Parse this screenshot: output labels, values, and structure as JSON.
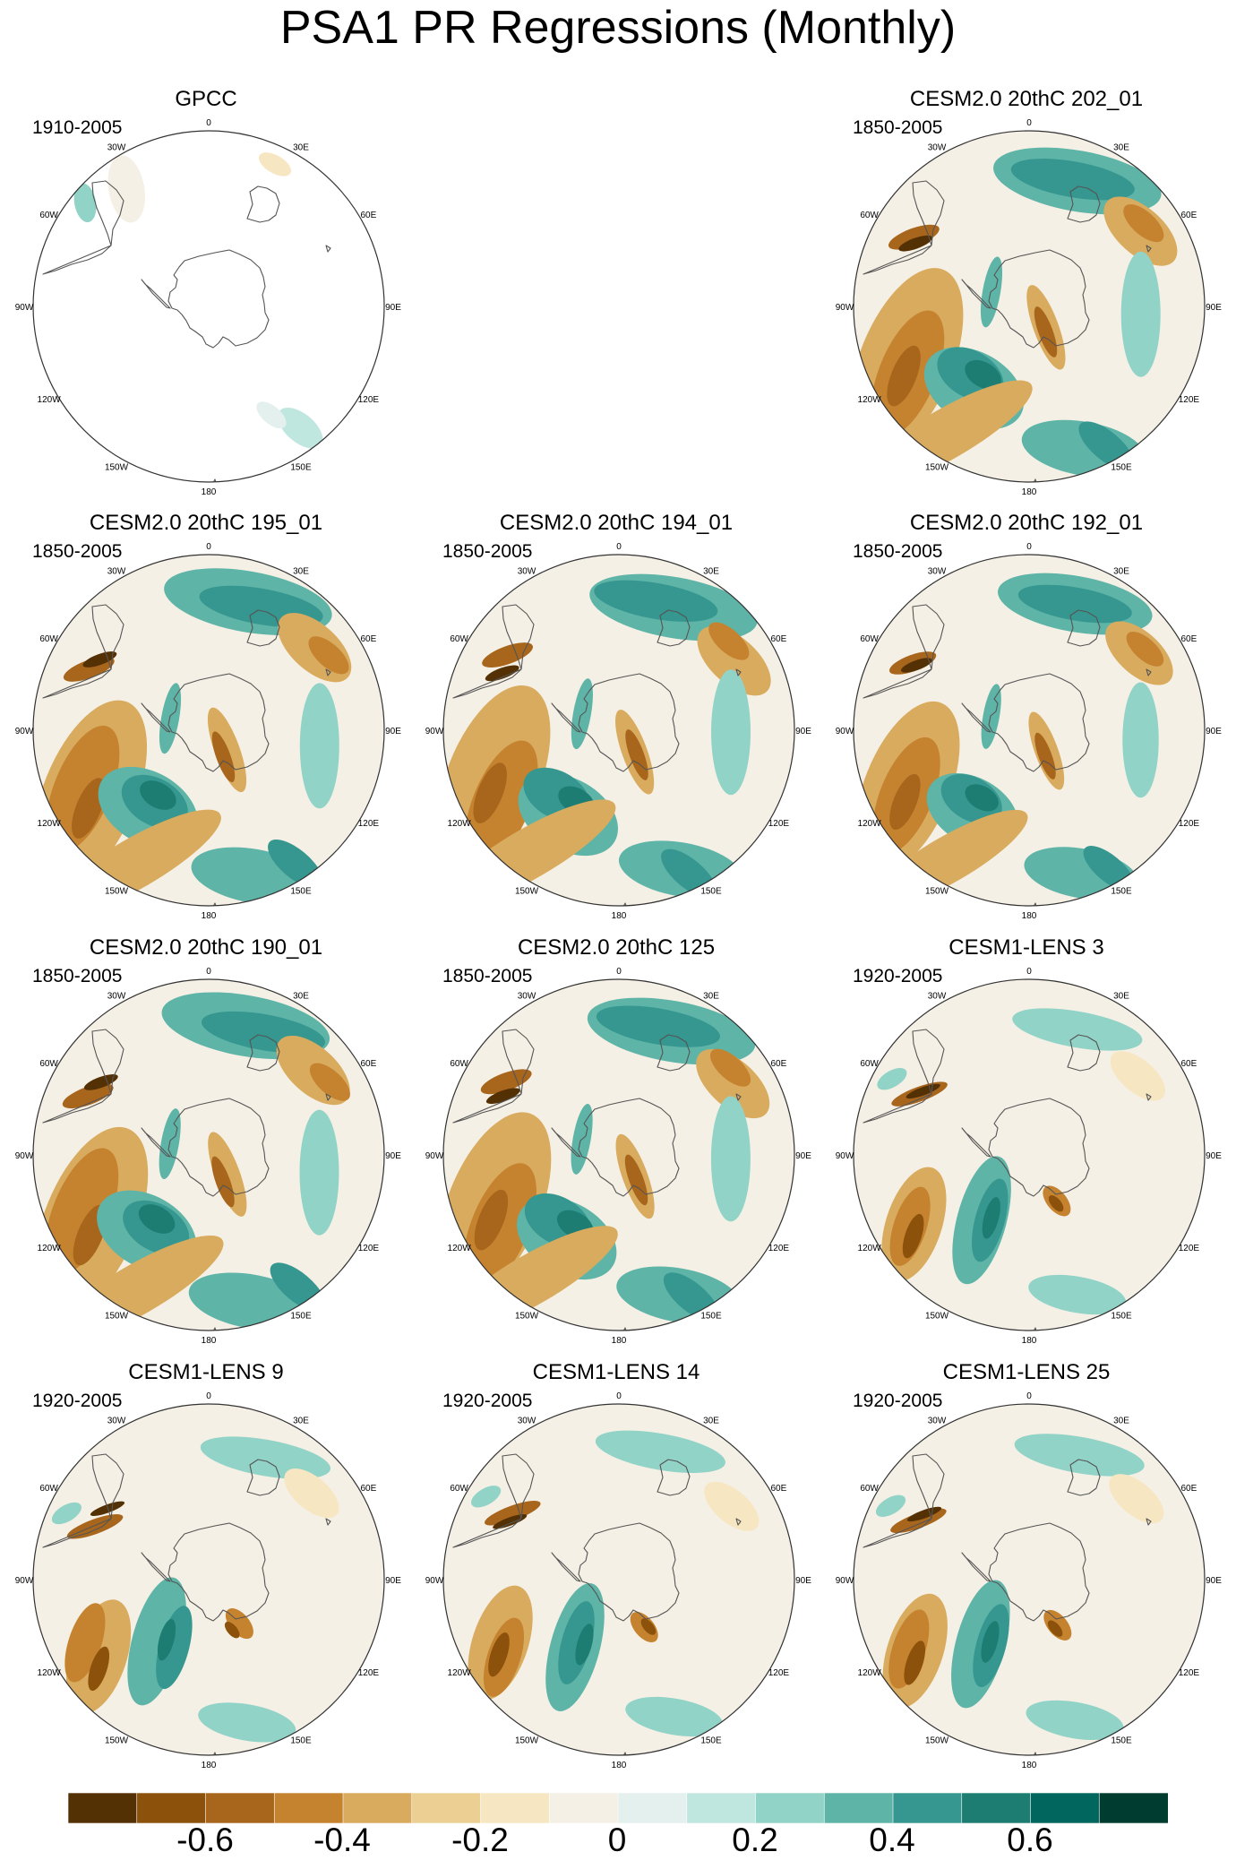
{
  "title": "PSA1 PR Regressions (Monthly)",
  "lon_labels": [
    "0",
    "30E",
    "60E",
    "90E",
    "120E",
    "150E",
    "180",
    "150W",
    "120W",
    "90W",
    "60W",
    "30W"
  ],
  "panels": [
    {
      "title": "GPCC",
      "period": "1910-2005"
    },
    {
      "title": "CESM2.0 20thC 202_01",
      "period": "1850-2005"
    },
    {
      "title": "CESM2.0 20thC 195_01",
      "period": "1850-2005"
    },
    {
      "title": "CESM2.0 20thC 194_01",
      "period": "1850-2005"
    },
    {
      "title": "CESM2.0 20thC 192_01",
      "period": "1850-2005"
    },
    {
      "title": "CESM2.0 20thC 190_01",
      "period": "1850-2005"
    },
    {
      "title": "CESM2.0 20thC 125",
      "period": "1850-2005"
    },
    {
      "title": "CESM1-LENS 3",
      "period": "1920-2005"
    },
    {
      "title": "CESM1-LENS 9",
      "period": "1920-2005"
    },
    {
      "title": "CESM1-LENS 14",
      "period": "1920-2005"
    },
    {
      "title": "CESM1-LENS 25",
      "period": "1920-2005"
    }
  ],
  "colorbar": {
    "colors": [
      "#543005",
      "#8c510a",
      "#a8651c",
      "#c58330",
      "#d9ab5e",
      "#ebcf93",
      "#f6e6c2",
      "#f5f0e5",
      "#e3f0ee",
      "#c0e6e0",
      "#92d3c8",
      "#5fb4a8",
      "#35978f",
      "#1d7d73",
      "#01665e",
      "#003c30"
    ],
    "tick_labels": [
      "-0.6",
      "-0.4",
      "-0.2",
      "0",
      "0.2",
      "0.4",
      "0.6"
    ]
  }
}
